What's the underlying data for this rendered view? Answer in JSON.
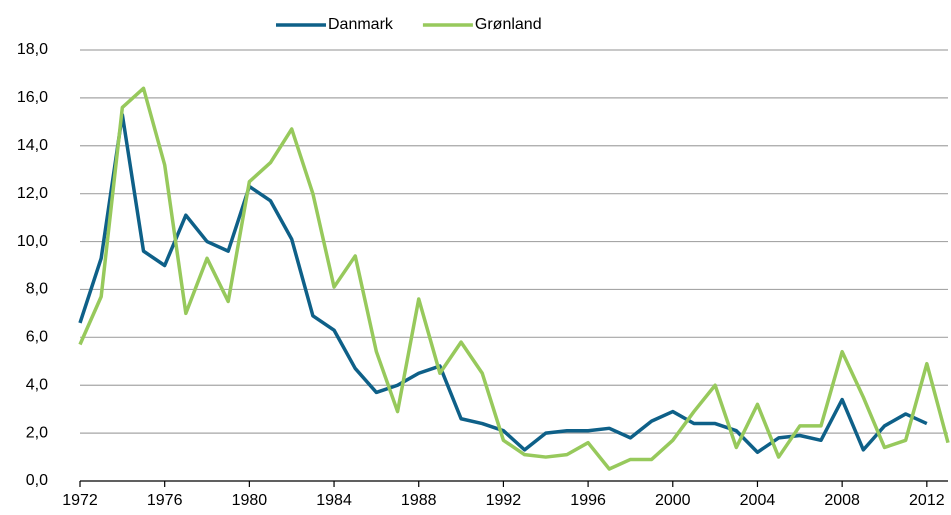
{
  "chart_data": {
    "type": "line",
    "x": [
      1972,
      1973,
      1974,
      1975,
      1976,
      1977,
      1978,
      1979,
      1980,
      1981,
      1982,
      1983,
      1984,
      1985,
      1986,
      1987,
      1988,
      1989,
      1990,
      1991,
      1992,
      1993,
      1994,
      1995,
      1996,
      1997,
      1998,
      1999,
      2000,
      2001,
      2002,
      2003,
      2004,
      2005,
      2006,
      2007,
      2008,
      2009,
      2010,
      2011,
      2012,
      2013
    ],
    "series": [
      {
        "name": "Danmark",
        "color": "#0e6088",
        "values": [
          6.6,
          9.3,
          15.3,
          9.6,
          9.0,
          11.1,
          10.0,
          9.6,
          12.3,
          11.7,
          10.1,
          6.9,
          6.3,
          4.7,
          3.7,
          4.0,
          4.5,
          4.8,
          2.6,
          2.4,
          2.1,
          1.3,
          2.0,
          2.1,
          2.1,
          2.2,
          1.8,
          2.5,
          2.9,
          2.4,
          2.4,
          2.1,
          1.2,
          1.8,
          1.9,
          1.7,
          3.4,
          1.3,
          2.3,
          2.8,
          2.4,
          null
        ]
      },
      {
        "name": "Grønland",
        "color": "#97c95c",
        "values": [
          5.7,
          7.7,
          15.6,
          16.4,
          13.2,
          7.0,
          9.3,
          7.5,
          12.5,
          13.3,
          14.7,
          12.0,
          8.1,
          9.4,
          5.4,
          2.9,
          7.6,
          4.5,
          5.8,
          4.5,
          1.7,
          1.1,
          1.0,
          1.1,
          1.6,
          0.5,
          0.9,
          0.9,
          1.7,
          2.9,
          4.0,
          1.4,
          3.2,
          1.0,
          2.3,
          2.3,
          5.4,
          3.5,
          1.4,
          1.7,
          4.9,
          1.6
        ]
      }
    ],
    "xlim": [
      1972,
      2013
    ],
    "xticks": [
      1972,
      1976,
      1980,
      1984,
      1988,
      1992,
      1996,
      2000,
      2004,
      2008,
      2012
    ],
    "ylim": [
      0,
      18
    ],
    "yticks": [
      {
        "value": 0,
        "label": "0,0"
      },
      {
        "value": 2,
        "label": "2,0"
      },
      {
        "value": 4,
        "label": "4,0"
      },
      {
        "value": 6,
        "label": "6,0"
      },
      {
        "value": 8,
        "label": "8,0"
      },
      {
        "value": 10,
        "label": "10,0"
      },
      {
        "value": 12,
        "label": "12,0"
      },
      {
        "value": 14,
        "label": "14,0"
      },
      {
        "value": 16,
        "label": "16,0"
      },
      {
        "value": 18,
        "label": "18,0"
      }
    ],
    "grid": true,
    "legend": "top"
  }
}
